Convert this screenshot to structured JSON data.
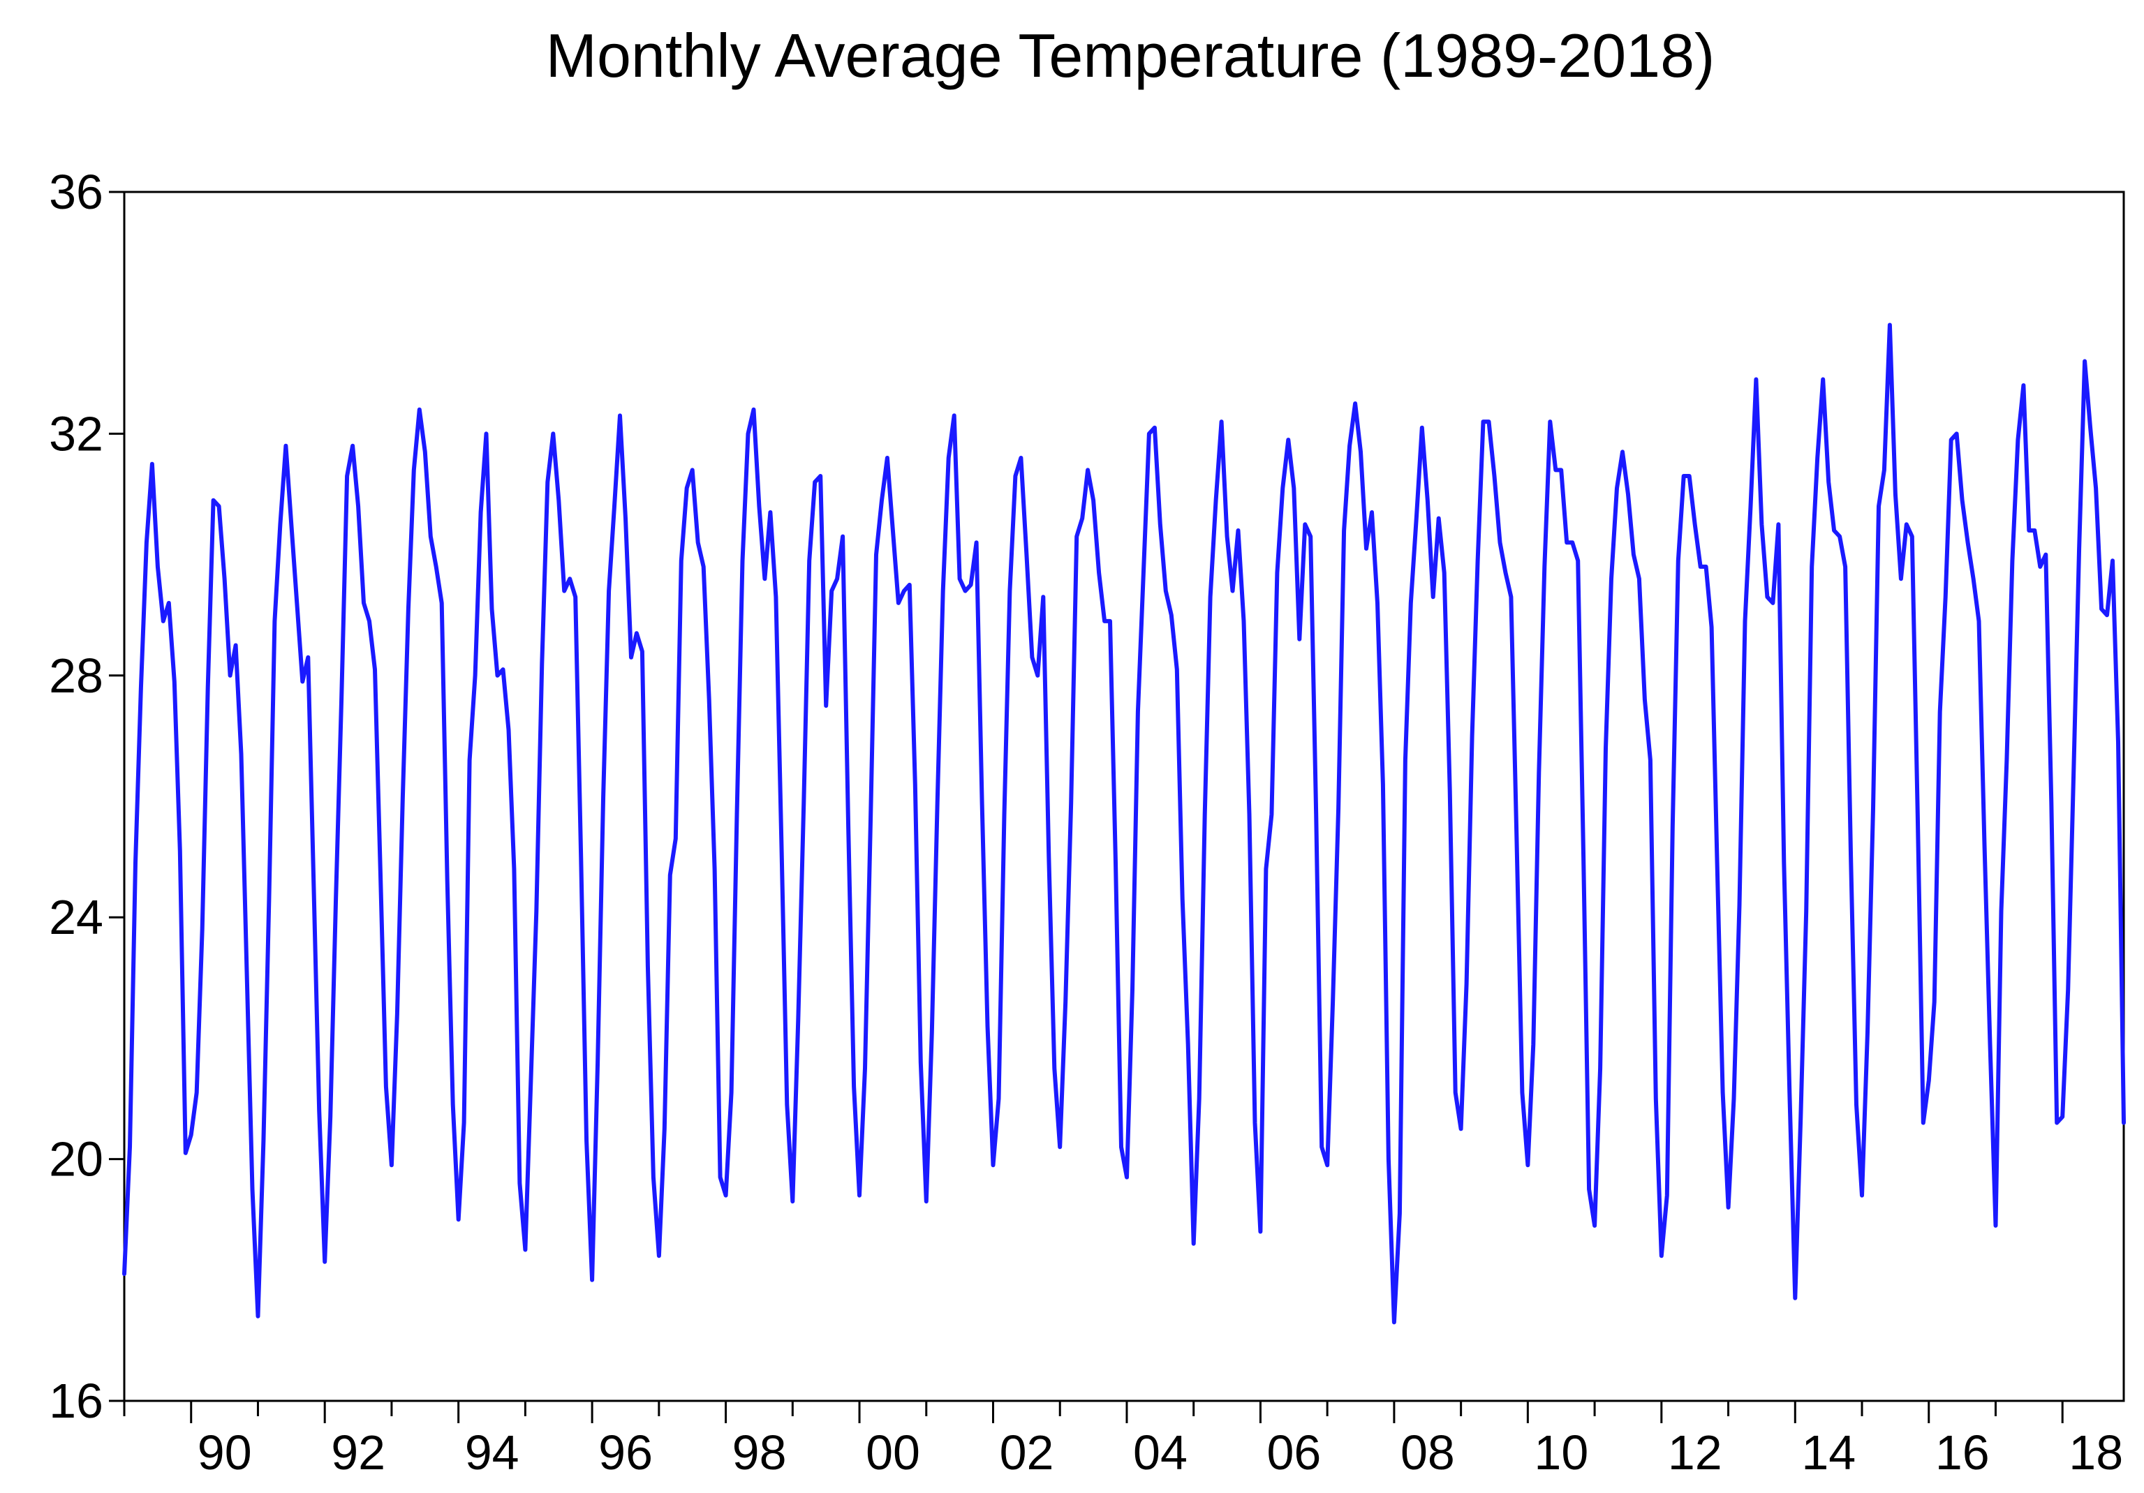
{
  "chart_data": {
    "type": "line",
    "title": "Monthly Average Temperature (1989-2018)",
    "xlabel": "",
    "ylabel": "",
    "ylim": [
      16,
      36
    ],
    "xlim": [
      1989.0,
      2018.917
    ],
    "grid": false,
    "legend": "none",
    "yticks": [
      {
        "value": 16,
        "label": "16"
      },
      {
        "value": 20,
        "label": "20"
      },
      {
        "value": 24,
        "label": "24"
      },
      {
        "value": 28,
        "label": "28"
      },
      {
        "value": 32,
        "label": "32"
      },
      {
        "value": 36,
        "label": "36"
      }
    ],
    "xticks": [
      {
        "value": 1990,
        "label": "90"
      },
      {
        "value": 1992,
        "label": "92"
      },
      {
        "value": 1994,
        "label": "94"
      },
      {
        "value": 1996,
        "label": "96"
      },
      {
        "value": 1998,
        "label": "98"
      },
      {
        "value": 2000,
        "label": "00"
      },
      {
        "value": 2002,
        "label": "02"
      },
      {
        "value": 2004,
        "label": "04"
      },
      {
        "value": 2006,
        "label": "06"
      },
      {
        "value": 2008,
        "label": "08"
      },
      {
        "value": 2010,
        "label": "10"
      },
      {
        "value": 2012,
        "label": "12"
      },
      {
        "value": 2014,
        "label": "14"
      },
      {
        "value": 2016,
        "label": "16"
      },
      {
        "value": 2018,
        "label": "18"
      }
    ],
    "series": [
      {
        "name": "Monthly Average Temperature",
        "color": "#1a1aff",
        "start_year": 1989,
        "start_month": 1,
        "values": [
          18.1,
          20.2,
          24.9,
          27.8,
          30.2,
          31.5,
          29.8,
          28.9,
          29.2,
          27.9,
          25.1,
          20.1,
          20.4,
          21.1,
          23.8,
          27.8,
          30.9,
          30.8,
          29.6,
          28.0,
          28.5,
          26.7,
          23.1,
          19.5,
          17.4,
          20.3,
          24.3,
          28.9,
          30.5,
          31.8,
          30.5,
          29.2,
          27.9,
          28.3,
          24.6,
          20.8,
          18.3,
          20.7,
          24.3,
          27.6,
          31.3,
          31.8,
          30.8,
          29.2,
          28.9,
          28.1,
          24.7,
          21.2,
          19.9,
          22.4,
          26.0,
          29.1,
          31.4,
          32.4,
          31.7,
          30.3,
          29.8,
          29.2,
          24.6,
          20.9,
          19.0,
          20.6,
          26.6,
          28.0,
          30.7,
          32.0,
          29.1,
          28.0,
          28.1,
          27.1,
          24.8,
          19.6,
          18.5,
          21.3,
          24.1,
          28.2,
          31.2,
          32.0,
          30.9,
          29.4,
          29.6,
          29.3,
          25.0,
          20.3,
          18.0,
          21.6,
          26.0,
          29.4,
          30.8,
          32.3,
          30.6,
          28.3,
          28.7,
          28.4,
          23.2,
          19.7,
          18.4,
          20.5,
          24.7,
          25.3,
          29.9,
          31.1,
          31.4,
          30.2,
          29.8,
          27.6,
          24.8,
          19.7,
          19.4,
          21.1,
          25.7,
          29.9,
          32.0,
          32.4,
          30.8,
          29.6,
          30.7,
          29.3,
          25.2,
          20.9,
          19.3,
          22.3,
          25.9,
          29.9,
          31.2,
          31.3,
          27.5,
          29.4,
          29.6,
          30.3,
          25.5,
          21.2,
          19.4,
          21.5,
          25.6,
          30.0,
          30.9,
          31.6,
          30.4,
          29.2,
          29.4,
          29.5,
          26.2,
          21.6,
          19.3,
          22.1,
          25.9,
          29.4,
          31.6,
          32.3,
          29.6,
          29.4,
          29.5,
          30.2,
          25.9,
          22.2,
          19.9,
          21.0,
          25.7,
          29.4,
          31.3,
          31.6,
          30.0,
          28.3,
          28.0,
          29.3,
          25.0,
          21.5,
          20.2,
          22.6,
          25.9,
          30.3,
          30.6,
          31.4,
          30.9,
          29.7,
          28.9,
          28.9,
          24.9,
          20.2,
          19.7,
          22.8,
          27.4,
          29.7,
          32.0,
          32.1,
          30.5,
          29.4,
          29.0,
          28.1,
          24.3,
          21.9,
          18.6,
          21.0,
          25.7,
          29.3,
          30.9,
          32.2,
          30.3,
          29.4,
          30.4,
          28.9,
          25.7,
          20.6,
          18.8,
          24.8,
          25.7,
          29.7,
          31.1,
          31.9,
          31.1,
          28.6,
          30.5,
          30.3,
          25.7,
          20.2,
          19.9,
          22.6,
          25.8,
          30.4,
          31.8,
          32.5,
          31.7,
          30.1,
          30.7,
          29.2,
          26.2,
          20.0,
          17.3,
          19.1,
          26.6,
          29.2,
          30.6,
          32.1,
          30.9,
          29.3,
          30.6,
          29.7,
          26.1,
          21.1,
          20.5,
          22.9,
          27.0,
          29.9,
          32.2,
          32.2,
          31.3,
          30.2,
          29.7,
          29.3,
          25.3,
          21.1,
          19.9,
          21.9,
          26.4,
          29.8,
          32.2,
          31.4,
          31.4,
          30.2,
          30.2,
          29.9,
          25.0,
          19.5,
          18.9,
          21.5,
          26.8,
          29.6,
          31.1,
          31.7,
          31.0,
          30.0,
          29.6,
          27.6,
          26.6,
          21.0,
          18.4,
          19.4,
          25.5,
          29.9,
          31.3,
          31.3,
          30.5,
          29.8,
          29.8,
          28.8,
          24.9,
          21.1,
          19.2,
          21.0,
          24.2,
          28.9,
          30.8,
          32.9,
          30.5,
          29.3,
          29.2,
          30.5,
          24.9,
          21.1,
          17.7,
          20.7,
          24.1,
          29.8,
          31.6,
          32.9,
          31.2,
          30.4,
          30.3,
          29.8,
          25.0,
          20.9,
          19.4,
          22.1,
          25.8,
          30.8,
          31.4,
          33.8,
          31.0,
          29.6,
          30.5,
          30.3,
          25.7,
          20.6,
          21.3,
          22.6,
          27.4,
          29.3,
          31.9,
          32.0,
          30.9,
          30.2,
          29.6,
          28.9,
          25.2,
          21.9,
          18.9,
          24.1,
          26.6,
          29.9,
          31.9,
          32.8,
          30.4,
          30.4,
          29.8,
          30.0,
          25.9,
          20.6,
          20.7,
          22.8,
          26.4,
          30.1,
          33.2,
          32.1,
          31.1,
          29.1,
          29.0,
          29.9,
          26.9,
          20.6
        ]
      }
    ]
  }
}
